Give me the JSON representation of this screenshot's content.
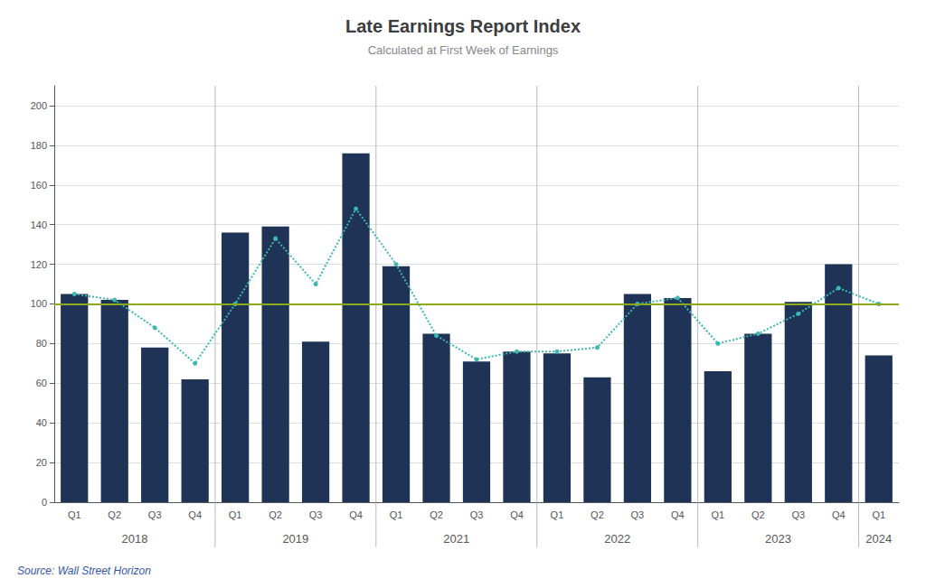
{
  "chart_data": {
    "type": "bar",
    "title": "Late Earnings Report Index",
    "subtitle": "Calculated at First Week of Earnings",
    "source": "Source: Wall Street Horizon",
    "categories": [
      "Q1",
      "Q2",
      "Q3",
      "Q4",
      "Q1",
      "Q2",
      "Q3",
      "Q4",
      "Q1",
      "Q2",
      "Q3",
      "Q4",
      "Q1",
      "Q2",
      "Q3",
      "Q4",
      "Q1",
      "Q2",
      "Q3",
      "Q4",
      "Q1"
    ],
    "groups": [
      {
        "label": "2018",
        "count": 4
      },
      {
        "label": "2019",
        "count": 4
      },
      {
        "label": "2021",
        "count": 4
      },
      {
        "label": "2022",
        "count": 4
      },
      {
        "label": "2023",
        "count": 4
      },
      {
        "label": "2024",
        "count": 1
      }
    ],
    "series": [
      {
        "type": "bar",
        "color": "#1e3355",
        "values": [
          105,
          102,
          78,
          62,
          136,
          139,
          81,
          176,
          119,
          85,
          71,
          76,
          75,
          63,
          105,
          103,
          66,
          85,
          101,
          120,
          74
        ]
      },
      {
        "type": "line",
        "color": "#3db8b0",
        "line_style": "dotted",
        "marker": "circle",
        "values": [
          105,
          102,
          88,
          70,
          100,
          133,
          110,
          148,
          120,
          84,
          72,
          76,
          76,
          78,
          100,
          103,
          80,
          85,
          95,
          108,
          100
        ]
      }
    ],
    "reference_line": {
      "value": 100,
      "color": "#8aaa1a"
    },
    "ylim": [
      0,
      210
    ],
    "yticks": [
      0,
      20,
      40,
      60,
      80,
      100,
      120,
      140,
      160,
      180,
      200
    ],
    "grid": true
  }
}
